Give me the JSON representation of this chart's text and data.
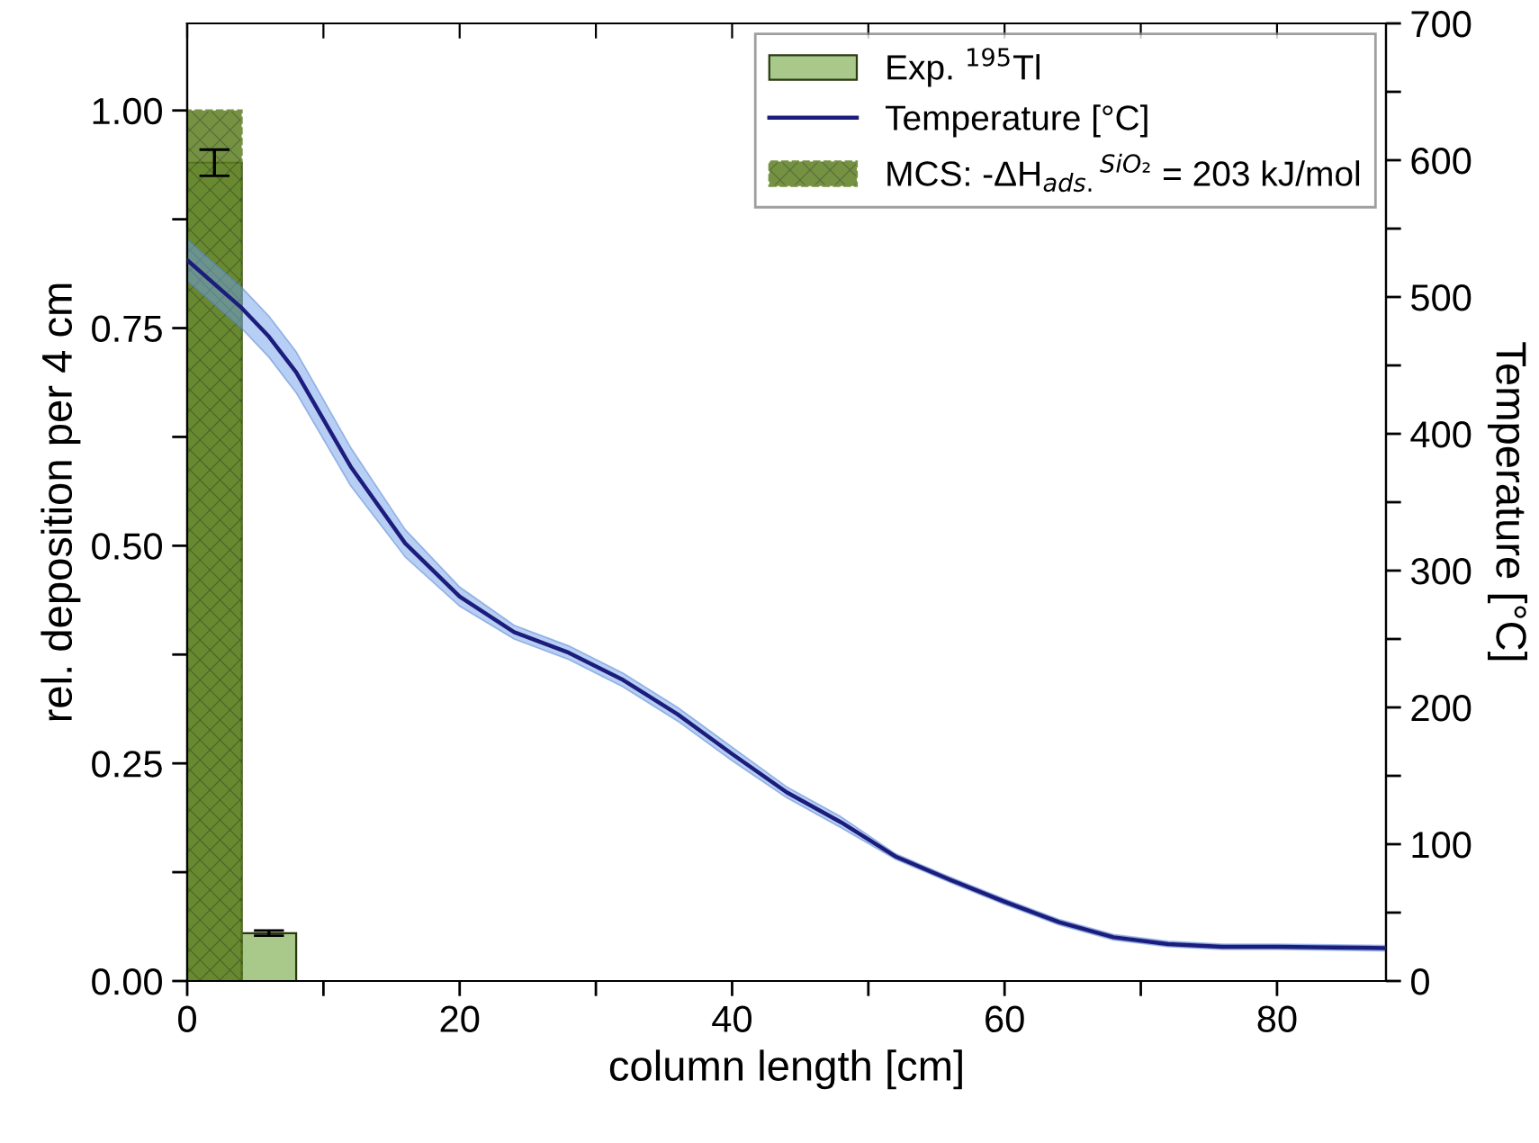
{
  "chart_data": {
    "type": "bar",
    "xlabel": "column length [cm]",
    "ylabel": "rel. deposition per 4 cm",
    "y2label": "Temperature [°C]",
    "x": [
      2,
      6
    ],
    "series": [
      {
        "name": "Exp. $^{195}$Tl",
        "color": "#a9c98a",
        "values": [
          0.94,
          0.055
        ],
        "errors": [
          0.015,
          0.003
        ]
      },
      {
        "name": "Temperature [°C]",
        "type": "line",
        "axis": "y2",
        "color": "#1c1c7c",
        "x": [
          0,
          4,
          6,
          8,
          12,
          16,
          20,
          24,
          28,
          32,
          36,
          40,
          44,
          48,
          52,
          56,
          60,
          64,
          68,
          72,
          76,
          80,
          88
        ],
        "values": [
          527,
          492,
          471,
          445,
          376,
          320,
          281,
          255,
          240,
          220,
          195,
          166,
          138,
          116,
          91,
          74,
          58,
          43,
          32,
          27,
          25,
          25,
          24
        ],
        "lower": [
          512,
          477,
          456,
          430,
          362,
          310,
          274,
          250,
          235,
          215,
          190,
          161,
          134,
          112,
          89,
          72,
          56,
          41,
          30,
          25,
          23,
          23,
          22
        ],
        "upper": [
          542,
          507,
          486,
          460,
          390,
          330,
          288,
          260,
          245,
          225,
          200,
          171,
          142,
          120,
          93,
          76,
          60,
          45,
          34,
          29,
          27,
          27,
          26
        ]
      },
      {
        "name": "MCS: -ΔH$_{ads.}$$^{SiO₂}$ = 203 kJ/mol",
        "color": "#5e7f22",
        "values": [
          1.0,
          null
        ]
      }
    ],
    "xlim": [
      0,
      88
    ],
    "xticks": [
      0,
      {
        "value": 10,
        "label": null
      },
      20,
      {
        "value": 30,
        "label": null
      },
      40,
      {
        "value": 50,
        "label": null
      },
      60,
      {
        "value": 70,
        "label": null
      },
      80
    ],
    "ylim": [
      0,
      1.1
    ],
    "yticks": [
      {
        "value": 0,
        "label": "0.00"
      },
      {
        "value": 0.125,
        "label": null
      },
      {
        "value": 0.25,
        "label": "0.25"
      },
      {
        "value": 0.375,
        "label": null
      },
      {
        "value": 0.5,
        "label": "0.50"
      },
      {
        "value": 0.625,
        "label": null
      },
      {
        "value": 0.75,
        "label": "0.75"
      },
      {
        "value": 0.875,
        "label": null
      },
      {
        "value": 1.0,
        "label": "1.00"
      }
    ],
    "y2lim": [
      0,
      700
    ],
    "y2ticks": [
      0,
      {
        "value": 50,
        "label": null
      },
      100,
      {
        "value": 150,
        "label": null
      },
      200,
      {
        "value": 250,
        "label": null
      },
      300,
      {
        "value": 350,
        "label": null
      },
      400,
      {
        "value": 450,
        "label": null
      },
      500,
      {
        "value": 550,
        "label": null
      },
      600,
      {
        "value": 650,
        "label": null
      },
      700
    ],
    "legend": "top right",
    "grid": false
  }
}
